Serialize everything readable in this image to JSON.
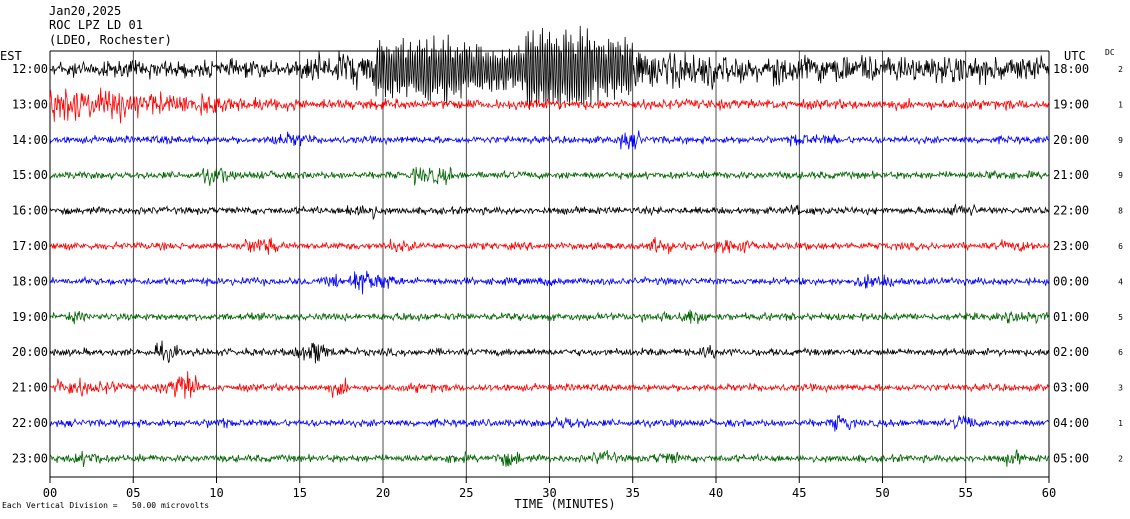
{
  "header": {
    "date": "Jan20,2025",
    "station": "ROC LPZ LD 01",
    "network": "(LDEO, Rochester)"
  },
  "left_axis_title": "EST",
  "right_axis_title": "UTC",
  "dc_title": "DC",
  "footnote": "Each Vertical Division =   50.00 microvolts",
  "chart_data": {
    "type": "line",
    "title": "ROC LPZ LD 01",
    "xlabel": "TIME (MINUTES)",
    "xlim": [
      0,
      60
    ],
    "x_ticks": [
      "00",
      "05",
      "10",
      "15",
      "20",
      "25",
      "30",
      "35",
      "40",
      "45",
      "50",
      "55",
      "60"
    ],
    "grid": "vertical lines every 5 minutes",
    "series": [
      {
        "est": "12:00",
        "utc": "18:00",
        "dc": "2",
        "color": "#000000",
        "activity": "earthquake surface waves 15-35 min, large amplitude"
      },
      {
        "est": "13:00",
        "utc": "19:00",
        "dc": "1",
        "color": "#ff0000",
        "activity": "elevated 0-15 min"
      },
      {
        "est": "14:00",
        "utc": "20:00",
        "dc": "9",
        "color": "#0000ff",
        "activity": "background"
      },
      {
        "est": "15:00",
        "utc": "21:00",
        "dc": "9",
        "color": "#006400",
        "activity": "background"
      },
      {
        "est": "16:00",
        "utc": "22:00",
        "dc": "8",
        "color": "#000000",
        "activity": "background"
      },
      {
        "est": "17:00",
        "utc": "23:00",
        "dc": "6",
        "color": "#ff0000",
        "activity": "background"
      },
      {
        "est": "18:00",
        "utc": "00:00",
        "dc": "4",
        "color": "#0000ff",
        "activity": "background"
      },
      {
        "est": "19:00",
        "utc": "01:00",
        "dc": "5",
        "color": "#006400",
        "activity": "background"
      },
      {
        "est": "20:00",
        "utc": "02:00",
        "dc": "6",
        "color": "#000000",
        "activity": "background"
      },
      {
        "est": "21:00",
        "utc": "03:00",
        "dc": "3",
        "color": "#ff0000",
        "activity": "background"
      },
      {
        "est": "22:00",
        "utc": "04:00",
        "dc": "1",
        "color": "#0000ff",
        "activity": "background"
      },
      {
        "est": "23:00",
        "utc": "05:00",
        "dc": "2",
        "color": "#006400",
        "activity": "background"
      }
    ]
  }
}
